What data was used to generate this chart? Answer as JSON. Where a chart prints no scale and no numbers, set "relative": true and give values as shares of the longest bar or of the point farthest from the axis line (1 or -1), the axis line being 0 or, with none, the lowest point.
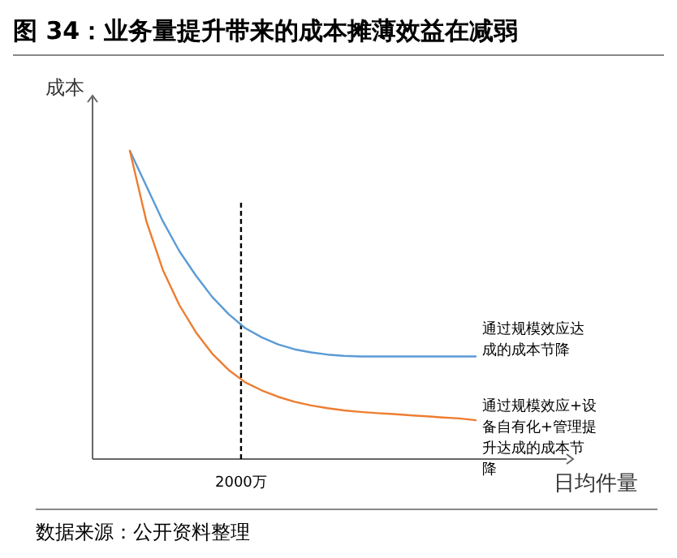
{
  "chart_data": {
    "type": "line",
    "title": "图 34：业务量提升带来的成本摊薄效益在减弱",
    "xlabel": "日均件量",
    "ylabel": "成本",
    "relative": true,
    "marker": "none",
    "line_style": "solid",
    "categories": [
      null,
      null,
      null,
      null,
      null,
      null,
      null,
      null,
      null,
      null,
      null,
      null,
      null,
      null,
      null,
      null,
      null,
      null,
      null,
      null,
      null,
      null
    ],
    "series": [
      {
        "name": "通过规模效应达成的成本节降",
        "color": "#5b9bd5",
        "values": [
          1.0,
          0.886,
          0.772,
          0.675,
          0.596,
          0.526,
          0.47,
          0.425,
          0.395,
          0.372,
          0.356,
          0.346,
          0.339,
          0.335,
          0.333,
          0.333,
          0.333,
          0.333,
          0.333,
          0.333,
          0.333,
          0.333
        ]
      },
      {
        "name": "通过规模效应+设备自有化+管理提升达成的成本节降",
        "color": "#ed7d31",
        "values": [
          1.0,
          0.772,
          0.614,
          0.5,
          0.412,
          0.342,
          0.289,
          0.249,
          0.223,
          0.202,
          0.186,
          0.174,
          0.165,
          0.158,
          0.153,
          0.149,
          0.146,
          0.142,
          0.139,
          0.135,
          0.132,
          0.126
        ]
      }
    ],
    "annotations": [
      "2000万",
      "数据来源：公开资料整理"
    ]
  }
}
